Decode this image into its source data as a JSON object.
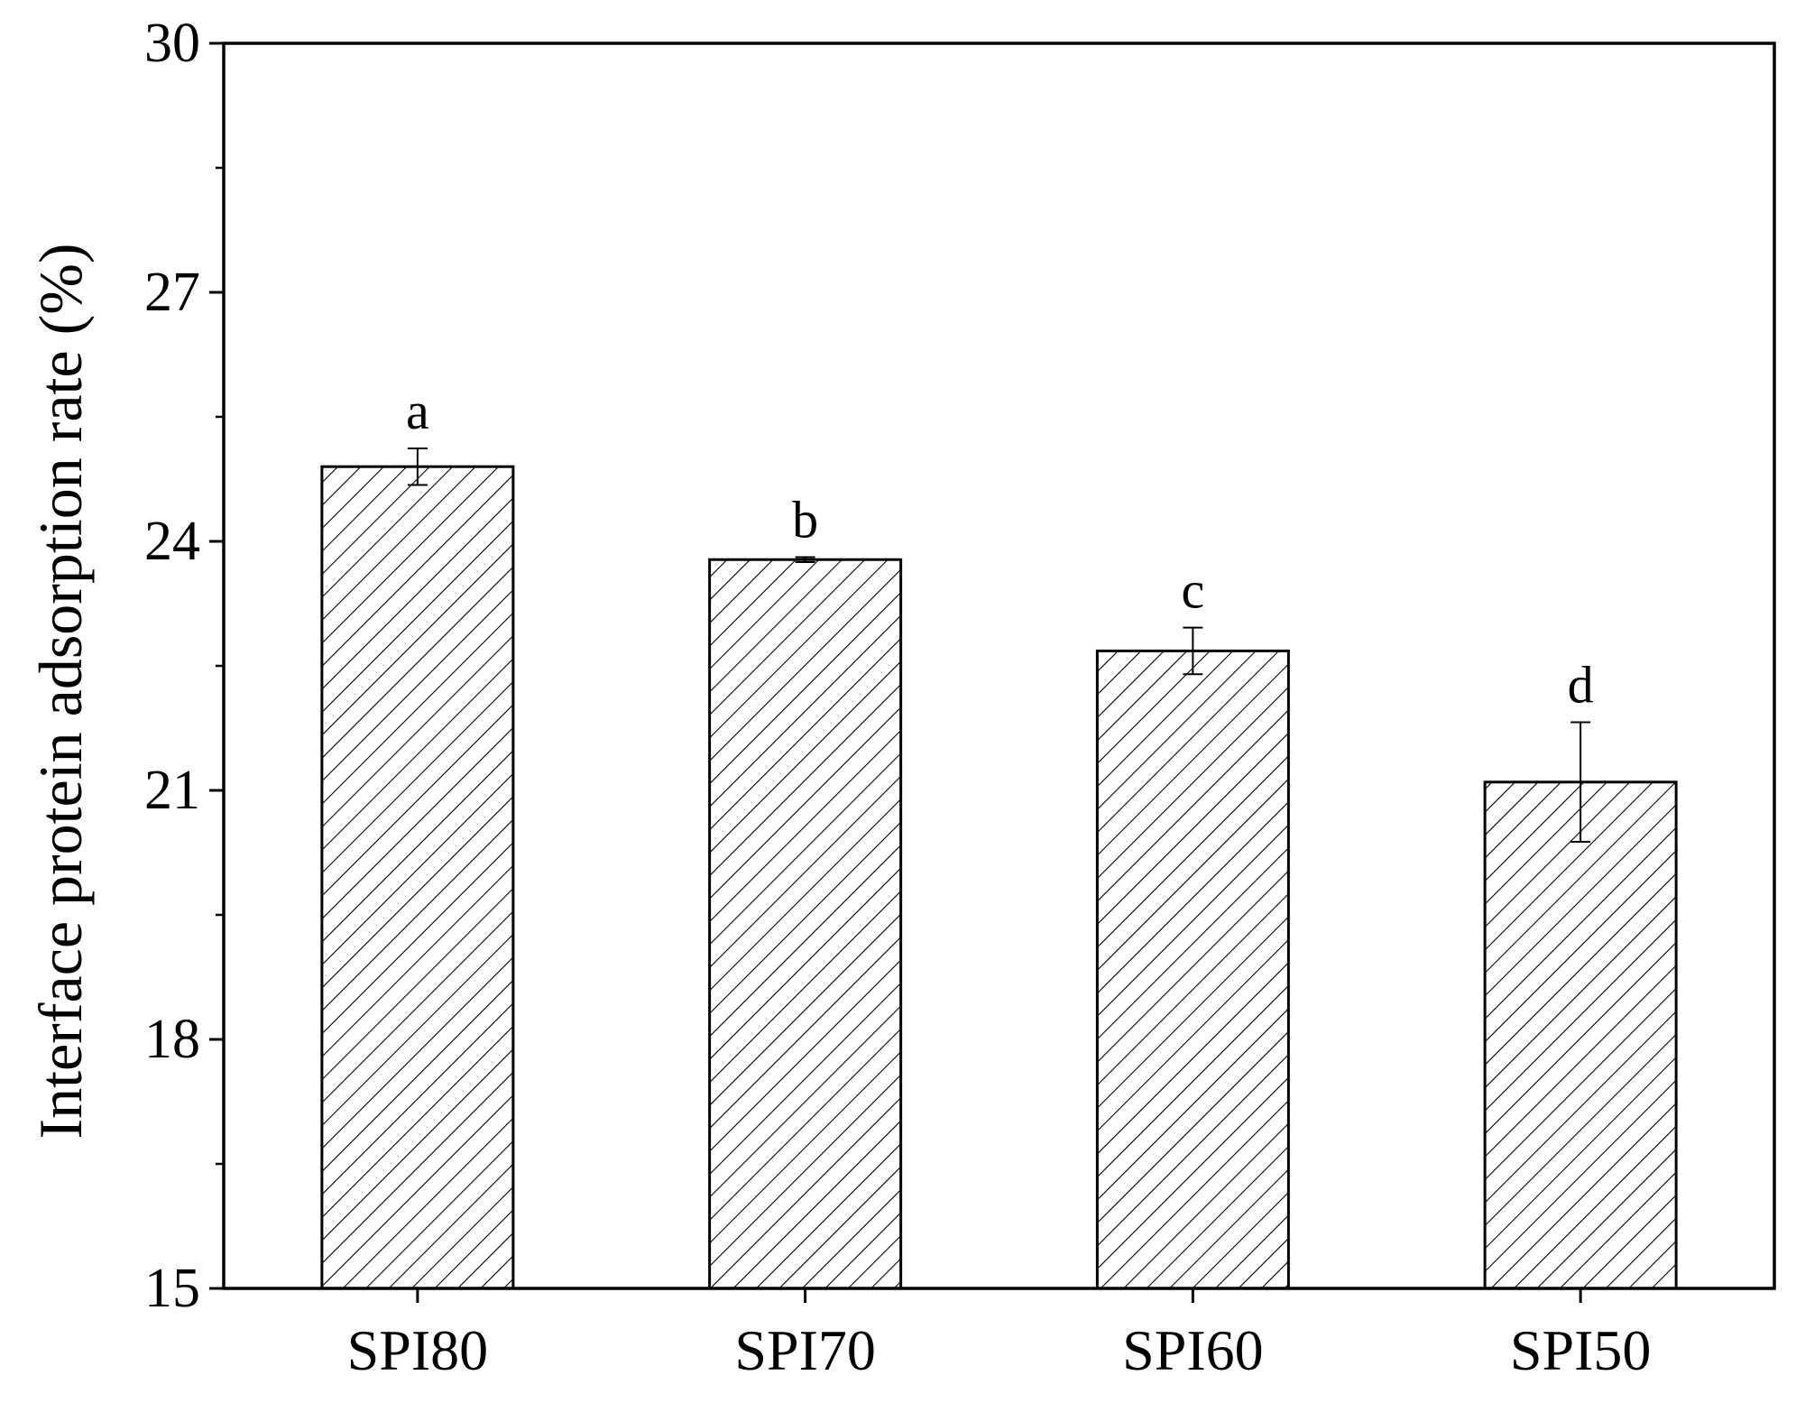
{
  "chart_data": {
    "type": "bar",
    "title": "",
    "xlabel": "",
    "ylabel": "Interface protein adsorption rate (%)",
    "categories": [
      "SPI80",
      "SPI70",
      "SPI60",
      "SPI50"
    ],
    "values": [
      24.9,
      23.78,
      22.68,
      21.1
    ],
    "errors": [
      0.22,
      0.03,
      0.28,
      0.72
    ],
    "significance_labels": [
      "a",
      "b",
      "c",
      "d"
    ],
    "ylim": [
      15,
      30
    ],
    "yticks": [
      15,
      18,
      21,
      24,
      27,
      30
    ],
    "ytick_labels": [
      "15",
      "18",
      "21",
      "24",
      "27",
      "30"
    ],
    "bar_fill": "hatched",
    "grid": false,
    "legend": "none"
  }
}
